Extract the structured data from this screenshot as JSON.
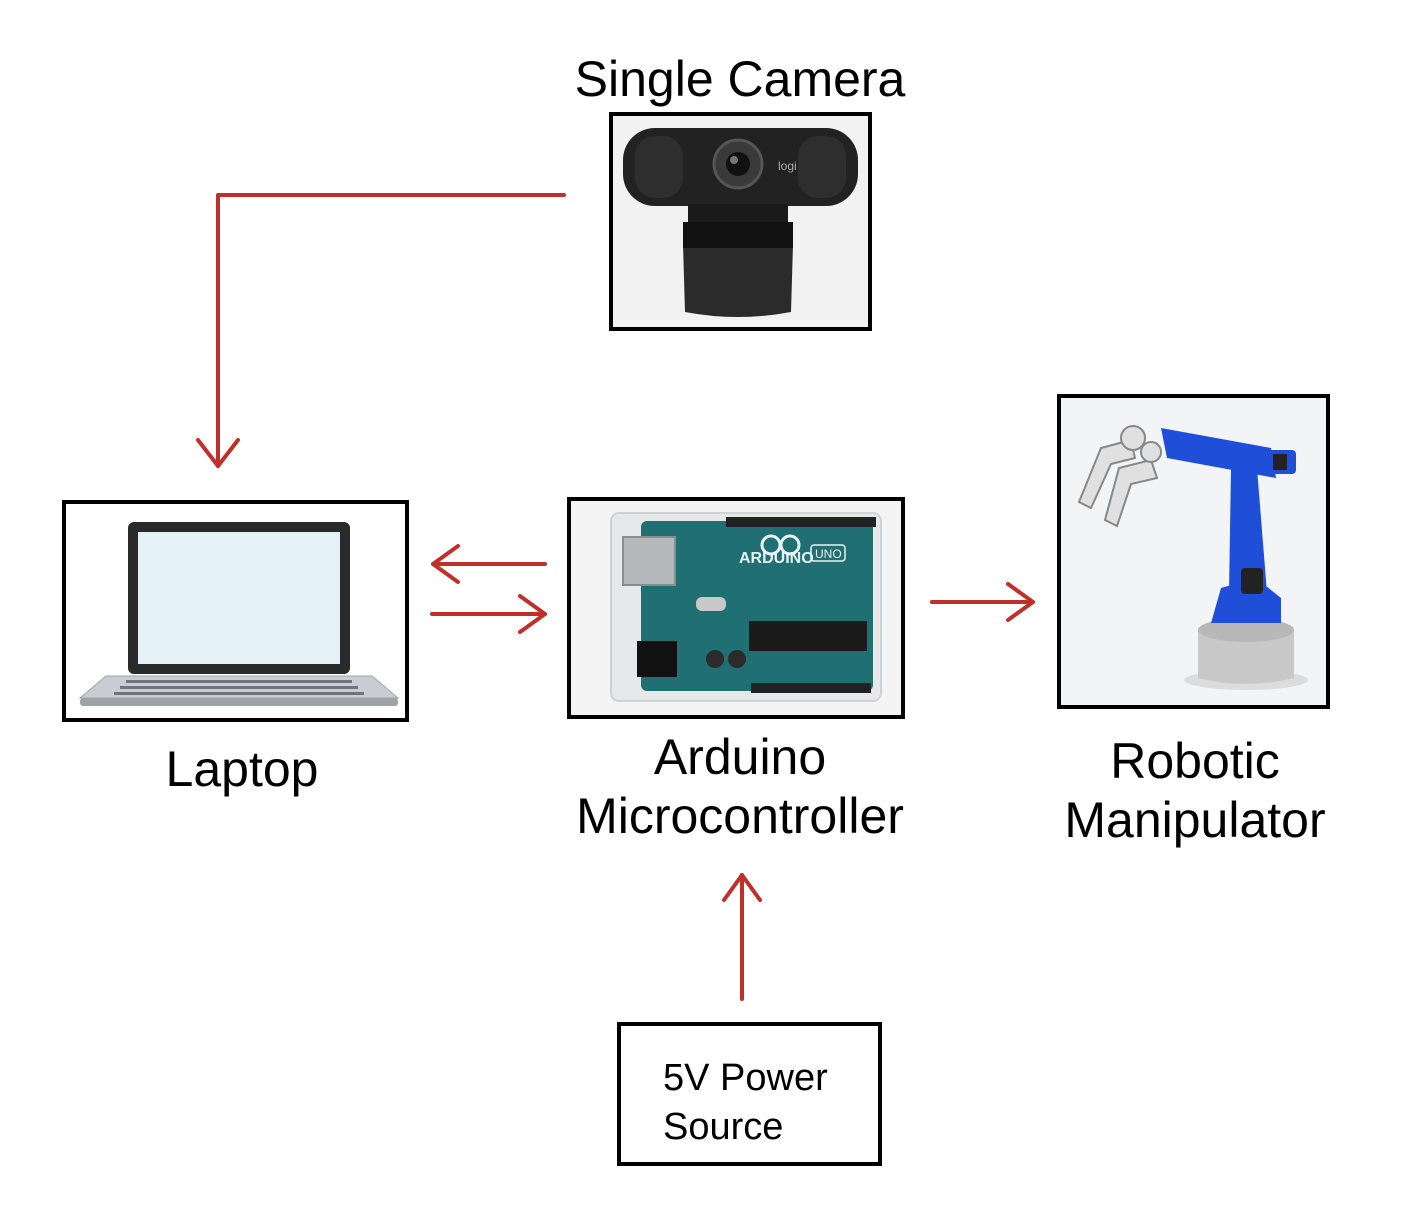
{
  "colors": {
    "arrow": "#c0302a",
    "border": "#000000",
    "arduino_board": "#1f6f73",
    "robot_arm": "#1f4fd8",
    "robot_base": "#c8c8c8"
  },
  "nodes": {
    "camera": {
      "label": "Single Camera",
      "icon": "webcam-icon"
    },
    "laptop": {
      "label": "Laptop",
      "icon": "laptop-icon"
    },
    "arduino": {
      "label_line1": "Arduino",
      "label_line2": "Microcontroller",
      "icon": "arduino-board-icon",
      "board_text": "ARDUINO",
      "badge_text": "UNO"
    },
    "robot": {
      "label_line1": "Robotic",
      "label_line2": "Manipulator",
      "icon": "robot-arm-icon"
    },
    "power": {
      "label_line1": "5V Power",
      "label_line2": "Source"
    }
  },
  "connections": [
    {
      "from": "camera",
      "to": "laptop"
    },
    {
      "from": "arduino",
      "to": "laptop"
    },
    {
      "from": "laptop",
      "to": "arduino"
    },
    {
      "from": "arduino",
      "to": "robot"
    },
    {
      "from": "power",
      "to": "arduino"
    }
  ]
}
